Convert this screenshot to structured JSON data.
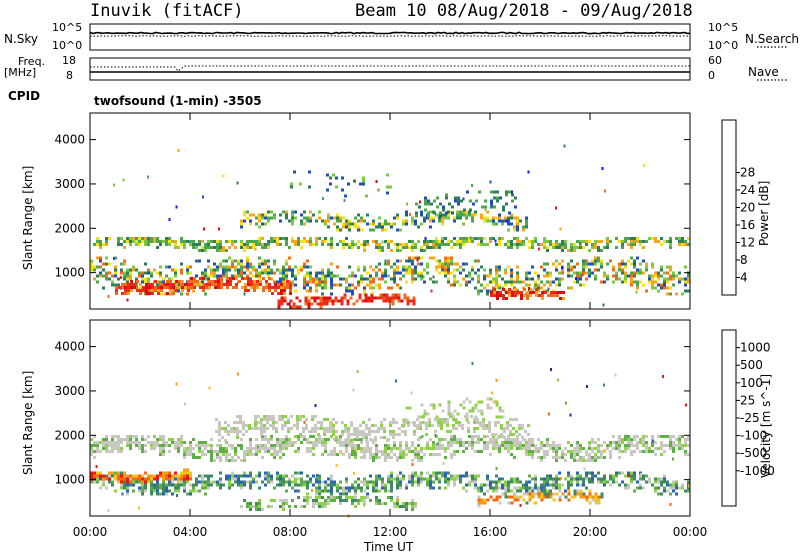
{
  "header": {
    "station": "Inuvik (fitACF)",
    "beam_info": "Beam 10 08/Aug/2018 - 09/Aug/2018"
  },
  "aux": {
    "nsky_label": "N.Sky",
    "nsearch_label": "N.Search",
    "nsky_ticks": [
      "10^5",
      "10^0"
    ],
    "nsearch_ticks": [
      "10^5",
      "10^0"
    ],
    "freq_label": "Freq.",
    "freq_unit": "[MHz]",
    "freq_ticks": [
      "18",
      "8"
    ],
    "nave_label": "Nave",
    "nave_ticks": [
      "60",
      "0"
    ],
    "cpid_label": "CPID",
    "cpid_value": "twofsound (1-min) -3505"
  },
  "chart_data": [
    {
      "type": "heatmap",
      "name_label": "Power [dB]",
      "ylabel": "Slant Range [km]",
      "xlabel": "Time UT",
      "x_ticks": [
        "00:00",
        "04:00",
        "08:00",
        "12:00",
        "16:00",
        "20:00",
        "00:00"
      ],
      "y_ticks": [
        "1000",
        "2000",
        "3000",
        "4000"
      ],
      "ylim": [
        180,
        4600
      ],
      "colorbar_ticks": [
        "4",
        "8",
        "12",
        "16",
        "20",
        "24",
        "28"
      ],
      "colorbar_colors": [
        "#0a1aff",
        "#1f4fb8",
        "#2e7f55",
        "#4ea54e",
        "#7ac943",
        "#f5e11a",
        "#f7a51d",
        "#f26a1a",
        "#ef2a1a",
        "#d90e0e"
      ],
      "bands": [
        {
          "t0": 0.0,
          "t1": 24.0,
          "center": 1620,
          "width": 160,
          "density": 0.75,
          "colors": [
            3,
            4,
            5,
            6,
            2,
            3
          ]
        },
        {
          "t0": 6.0,
          "t1": 17.5,
          "center": 2150,
          "width": 220,
          "density": 0.6,
          "colors": [
            2,
            3,
            4,
            5,
            6,
            1
          ]
        },
        {
          "t0": 0.0,
          "t1": 24.0,
          "center": 900,
          "width": 420,
          "density": 0.55,
          "colors": [
            2,
            3,
            4,
            5,
            6,
            7,
            1
          ]
        },
        {
          "t0": 1.0,
          "t1": 8.0,
          "center": 680,
          "width": 180,
          "density": 0.85,
          "colors": [
            7,
            8,
            9,
            8,
            7,
            6
          ]
        },
        {
          "t0": 7.5,
          "t1": 13.0,
          "center": 330,
          "width": 140,
          "density": 0.8,
          "colors": [
            8,
            9,
            8,
            7
          ]
        },
        {
          "t0": 16.0,
          "t1": 19.0,
          "center": 450,
          "width": 140,
          "density": 0.75,
          "colors": [
            7,
            8,
            9,
            6
          ]
        },
        {
          "t0": 13.0,
          "t1": 17.0,
          "center": 2500,
          "width": 320,
          "density": 0.35,
          "colors": [
            1,
            2,
            3
          ]
        },
        {
          "t0": 8.0,
          "t1": 12.0,
          "center": 3000,
          "width": 300,
          "density": 0.15,
          "colors": [
            1,
            2,
            4
          ]
        }
      ]
    },
    {
      "type": "heatmap",
      "name_label": "Velocity [m s^-1]",
      "ylabel": "Slant Range [km]",
      "xlabel": "Time UT",
      "x_ticks": [
        "00:00",
        "04:00",
        "08:00",
        "12:00",
        "16:00",
        "20:00",
        "00:00"
      ],
      "y_ticks": [
        "1000",
        "2000",
        "3000",
        "4000"
      ],
      "ylim": [
        180,
        4600
      ],
      "colorbar_ticks": [
        "1000",
        "500",
        "100",
        "25",
        "-25",
        "-100",
        "-500",
        "-1000"
      ],
      "colorbar_colors": [
        "#1c2f9e",
        "#2a63b8",
        "#3f8a5f",
        "#5fae47",
        "#8ed24a",
        "#c8c8c0",
        "#f5c51c",
        "#f39a16",
        "#ef6a12",
        "#e81a10"
      ],
      "bands": [
        {
          "t0": 0.0,
          "t1": 24.0,
          "center": 1700,
          "width": 300,
          "density": 0.7,
          "colors": [
            5,
            5,
            5,
            4,
            3
          ]
        },
        {
          "t0": 5.0,
          "t1": 17.5,
          "center": 2150,
          "width": 300,
          "density": 0.55,
          "colors": [
            5,
            5,
            5,
            4
          ]
        },
        {
          "t0": 0.0,
          "t1": 24.0,
          "center": 900,
          "width": 260,
          "density": 0.7,
          "colors": [
            2,
            3,
            2,
            5,
            4,
            1
          ]
        },
        {
          "t0": 0.0,
          "t1": 4.0,
          "center": 1050,
          "width": 140,
          "density": 0.85,
          "colors": [
            7,
            8,
            9,
            6
          ]
        },
        {
          "t0": 15.5,
          "t1": 20.5,
          "center": 550,
          "width": 180,
          "density": 0.65,
          "colors": [
            6,
            7,
            8,
            2,
            5
          ]
        },
        {
          "t0": 6.0,
          "t1": 13.0,
          "center": 450,
          "width": 160,
          "density": 0.6,
          "colors": [
            2,
            5,
            4,
            3
          ]
        },
        {
          "t0": 12.5,
          "t1": 16.5,
          "center": 2500,
          "width": 320,
          "density": 0.35,
          "colors": [
            5,
            4
          ]
        }
      ]
    }
  ]
}
